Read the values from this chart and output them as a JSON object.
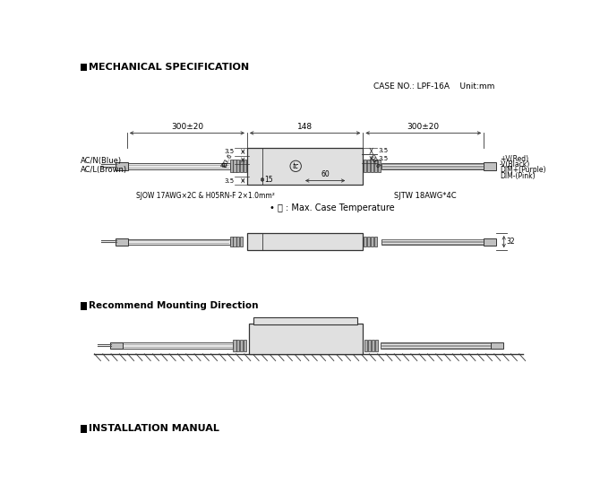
{
  "title_mech": "MECHANICAL SPECIFICATION",
  "title_mount": "Recommend Mounting Direction",
  "title_install": "INSTALLATION MANUAL",
  "case_no": "CASE NO.: LPF-16A    Unit:mm",
  "dim_left": "300±20",
  "dim_mid": "148",
  "dim_right": "300±20",
  "label_acn": "AC/N(Blue)",
  "label_acl": "AC/L(Brown)",
  "label_wire_in": "SJOW 17AWG×2C & H05RN-F 2×1.0mm²",
  "label_wire_out": "SJTW 18AWG*4C",
  "label_v_pos": "+V(Red)",
  "label_v_neg": "-V(Black)",
  "label_dim_pos": "DIM+(Purple)",
  "label_dim_neg": "DIM-(Pink)",
  "label_tc_note": "• Ⓣ : Max. Case Temperature",
  "bg_color": "#ffffff",
  "line_color": "#333333",
  "gray_cable": "#e8e8e8",
  "gray_body": "#e0e0e0",
  "gray_conn": "#b0b0b0",
  "gray_end": "#c0c0c0"
}
